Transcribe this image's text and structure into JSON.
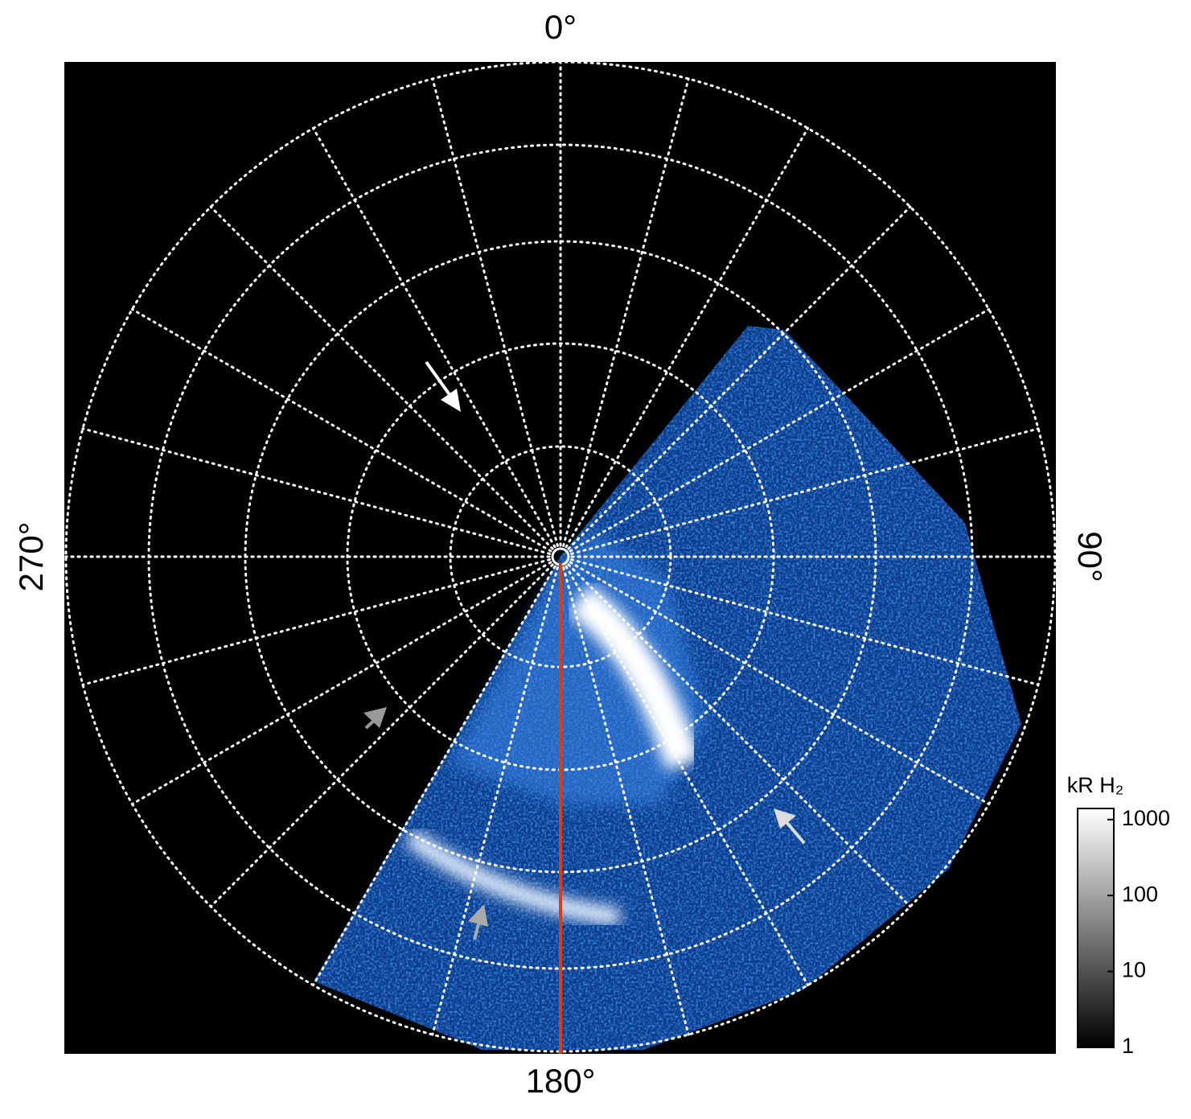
{
  "chart_data": {
    "type": "polar-image",
    "angular_ticks": [
      {
        "value": 0,
        "label": "0°"
      },
      {
        "value": 90,
        "label": "90°"
      },
      {
        "value": 180,
        "label": "180°"
      },
      {
        "value": 270,
        "label": "270°"
      }
    ],
    "grid": true,
    "colorbar": {
      "label": "kR H₂",
      "scale": "log",
      "lim": [
        1,
        1400
      ],
      "ticks": [
        1,
        10,
        100,
        1000
      ]
    }
  }
}
